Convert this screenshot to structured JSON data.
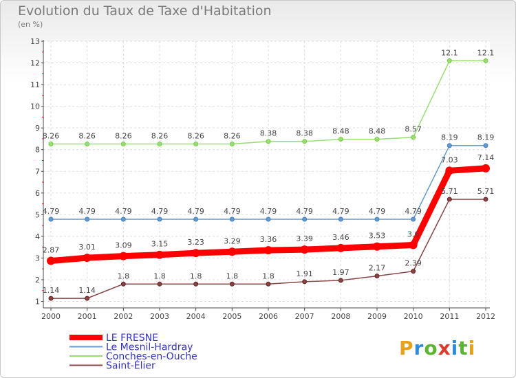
{
  "chart_data": {
    "type": "line",
    "title": "Evolution du Taux de Taxe d'Habitation",
    "subtitle": "(en %)",
    "x": [
      "2000",
      "2001",
      "2002",
      "2003",
      "2004",
      "2005",
      "2006",
      "2007",
      "2008",
      "2009",
      "2010",
      "2011",
      "2012"
    ],
    "y_ticks": [
      "1",
      "2",
      "3",
      "4",
      "5",
      "6",
      "7",
      "8",
      "9",
      "10",
      "11",
      "12",
      "13"
    ],
    "ylim": [
      0.7,
      13
    ],
    "grid": true,
    "legend_placement": "bottom-left",
    "series": [
      {
        "name": "LE FRESNE",
        "color": "#ff0000",
        "emphasis": true,
        "values": [
          2.87,
          3.01,
          3.09,
          3.15,
          3.23,
          3.29,
          3.36,
          3.39,
          3.46,
          3.53,
          3.6,
          7.03,
          7.14
        ],
        "labels": [
          "2.87",
          "3.01",
          "3.09",
          "3.15",
          "3.23",
          "3.29",
          "3.36",
          "3.39",
          "3.46",
          "3.53",
          "3.6",
          "7.03",
          "7.14"
        ]
      },
      {
        "name": "Le Mesnil-Hardray",
        "color": "#6699cc",
        "marker": "#3f7fc4",
        "values": [
          4.79,
          4.79,
          4.79,
          4.79,
          4.79,
          4.79,
          4.79,
          4.79,
          4.79,
          4.79,
          4.79,
          8.19,
          8.19
        ],
        "labels": [
          "4.79",
          "4.79",
          "4.79",
          "4.79",
          "4.79",
          "4.79",
          "4.79",
          "4.79",
          "4.79",
          "4.79",
          "4.79",
          "8.19",
          "8.19"
        ]
      },
      {
        "name": "Conches-en-Ouche",
        "color": "#99dd77",
        "marker": "#77cc44",
        "values": [
          8.26,
          8.26,
          8.26,
          8.26,
          8.26,
          8.26,
          8.38,
          8.38,
          8.48,
          8.48,
          8.57,
          12.1,
          12.1
        ],
        "labels": [
          "8.26",
          "8.26",
          "8.26",
          "8.26",
          "8.26",
          "8.26",
          "8.38",
          "8.38",
          "8.48",
          "8.48",
          "8.57",
          "12.1",
          "12.1"
        ]
      },
      {
        "name": "Saint-Élier",
        "color": "#884444",
        "marker": "#662222",
        "values": [
          1.14,
          1.14,
          1.8,
          1.8,
          1.8,
          1.8,
          1.8,
          1.91,
          1.97,
          2.17,
          2.39,
          5.71,
          5.71
        ],
        "labels": [
          "1.14",
          "1.14",
          "1.8",
          "1.8",
          "1.8",
          "1.8",
          "1.8",
          "1.91",
          "1.97",
          "2.17",
          "2.39",
          "5.71",
          "5.71"
        ]
      }
    ]
  },
  "brand": {
    "logo_letters": [
      "P",
      "r",
      "o",
      "x",
      "i",
      "t",
      "i"
    ]
  }
}
